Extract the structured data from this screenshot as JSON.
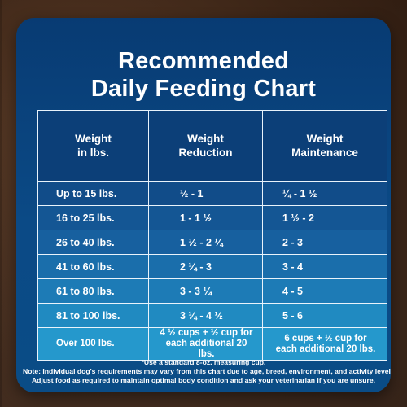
{
  "title": {
    "line1": "Recommended",
    "line2": "Daily Feeding Chart"
  },
  "table": {
    "headers": [
      "Weight in lbs.",
      "Weight Reduction",
      "Weight Maintenance"
    ],
    "header_lines": [
      [
        "Weight",
        "in lbs."
      ],
      [
        "Weight",
        "Reduction"
      ],
      [
        "Weight",
        "Maintenance"
      ]
    ],
    "rows": [
      {
        "weight": "Up to 15 lbs.",
        "reduction": "½ - 1",
        "maintenance": "¼ - 1 ½"
      },
      {
        "weight": "16 to 25 lbs.",
        "reduction": "1 - 1 ½",
        "maintenance": "1 ½ - 2"
      },
      {
        "weight": "26 to 40 lbs.",
        "reduction": "1 ½ - 2 ¼",
        "maintenance": "2 - 3"
      },
      {
        "weight": "41 to 60 lbs.",
        "reduction": "2 ¼ - 3",
        "maintenance": "3 - 4"
      },
      {
        "weight": "61 to 80 lbs.",
        "reduction": "3 - 3 ¼",
        "maintenance": "4 - 5"
      },
      {
        "weight": "81 to 100 lbs.",
        "reduction": "3 ¼ - 4 ½",
        "maintenance": "5 - 6"
      },
      {
        "weight": "Over 100 lbs.",
        "reduction": "4 ½ cups + ½ cup for each additional 20 lbs.",
        "maintenance": "6 cups + ½ cup for each additional 20 lbs."
      }
    ],
    "last_row_lines": {
      "reduction": [
        "4 ½ cups + ½ cup for",
        "each additional 20 lbs."
      ],
      "maintenance": [
        "6 cups + ½ cup for",
        "each additional 20 lbs."
      ]
    }
  },
  "footnote": {
    "cup": "*Use a standard 8-oz. measuring cup.",
    "lines": [
      "Note: Individual dog's requirements may vary from this chart due to age, breed, environment, and activity level.",
      "Adjust food as required to maintain optimal body condition and ask your veterinarian if you are unsure."
    ]
  },
  "colors": {
    "card_top": "#083b73",
    "card_bottom": "#0a4c86",
    "row_gradient": [
      "#114c89",
      "#145694",
      "#17609f",
      "#1a6eab",
      "#1d7bb6",
      "#208ac1",
      "#2598cc"
    ],
    "text": "#ffffff"
  }
}
